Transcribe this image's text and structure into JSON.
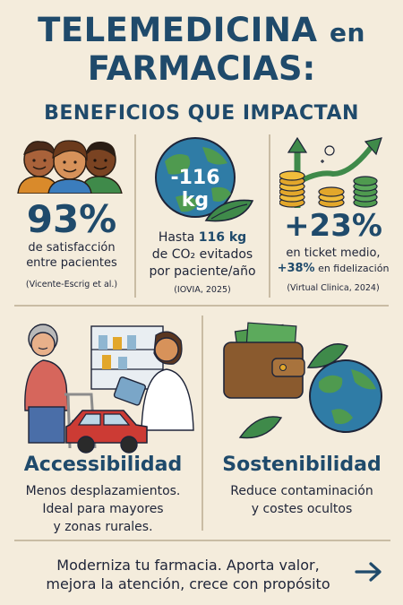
{
  "header": {
    "title_line1_a": "TELEMEDICINA",
    "title_line1_b": "en",
    "title_line2": "FARMACIAS:",
    "subtitle": "BENEFICIOS QUE IMPACTAN"
  },
  "stats": [
    {
      "value": "93%",
      "text_line1": "de satisfacción",
      "text_line2": "entre pacientes",
      "source": "(Vicente-Escrig et al.)",
      "icon": "patients-icon"
    },
    {
      "badge": "-116 kg",
      "text_prefix": "Hasta ",
      "text_highlight": "116 kg",
      "text_line2": "de CO₂ evitados",
      "text_line3": "por paciente/año",
      "source": "(IOVIA, 2025)",
      "icon": "earth-icon"
    },
    {
      "value": "+23%",
      "text_line1": "en ticket medio,",
      "text_highlight": "+38%",
      "text_line2_suffix": " en fidelización",
      "source": "(Virtual Clinica, 2024)",
      "icon": "coins-growth-icon"
    }
  ],
  "features": [
    {
      "title": "Accessibilidad",
      "line1": "Menos desplazamientos.",
      "line2": "Ideal para mayores",
      "line3": "y zonas rurales.",
      "icon": "pharmacy-consult-icon"
    },
    {
      "title": "Sostenibilidad",
      "line1": "Reduce contaminación",
      "line2": "y costes ocultos",
      "icon": "wallet-earth-icon"
    }
  ],
  "banner": {
    "line1": "Moderniza tu farmacia. Aporta valor,",
    "line2": "mejora la atención, crece con propósito",
    "icon": "arrow-right-icon"
  },
  "colors": {
    "background": "#f4ecdc",
    "navy": "#1f4a6b",
    "green": "#3f8a4a"
  }
}
